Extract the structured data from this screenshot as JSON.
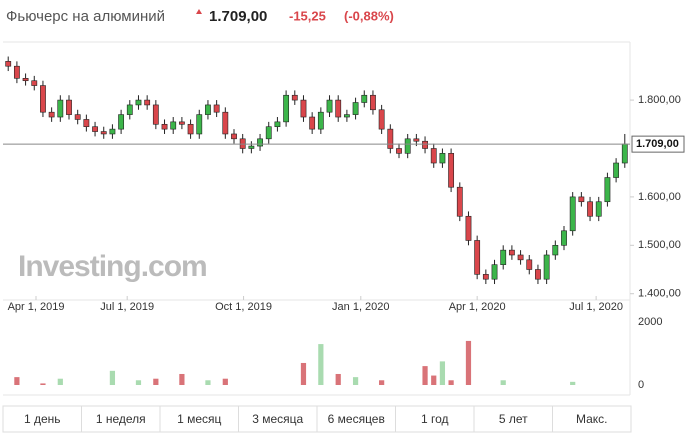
{
  "header": {
    "title": "Фьючерс на алюминий",
    "price": "1.709,00",
    "change": "-15,25",
    "change_pct": "(-0,88%)"
  },
  "chart_data": {
    "type": "candlestick",
    "watermark": "Investing.com",
    "open": [
      1880,
      1870,
      1845,
      1840,
      1830,
      1775,
      1765,
      1800,
      1770,
      1760,
      1745,
      1735,
      1730,
      1740,
      1770,
      1790,
      1800,
      1790,
      1750,
      1740,
      1755,
      1750,
      1730,
      1770,
      1790,
      1775,
      1730,
      1720,
      1700,
      1705,
      1720,
      1745,
      1755,
      1810,
      1800,
      1765,
      1740,
      1775,
      1800,
      1765,
      1770,
      1795,
      1810,
      1780,
      1740,
      1700,
      1690,
      1720,
      1715,
      1700,
      1670,
      1690,
      1620,
      1560,
      1510,
      1440,
      1430,
      1460,
      1490,
      1480,
      1470,
      1450,
      1430,
      1480,
      1500,
      1530,
      1600,
      1590,
      1560,
      1590,
      1640,
      1670
    ],
    "high": [
      1890,
      1880,
      1855,
      1850,
      1840,
      1785,
      1810,
      1810,
      1780,
      1770,
      1755,
      1745,
      1750,
      1780,
      1800,
      1810,
      1810,
      1800,
      1760,
      1765,
      1765,
      1760,
      1780,
      1800,
      1800,
      1785,
      1740,
      1730,
      1715,
      1730,
      1755,
      1765,
      1820,
      1820,
      1810,
      1775,
      1785,
      1810,
      1810,
      1780,
      1805,
      1820,
      1820,
      1790,
      1750,
      1710,
      1730,
      1730,
      1725,
      1710,
      1700,
      1700,
      1630,
      1570,
      1520,
      1450,
      1470,
      1500,
      1500,
      1490,
      1480,
      1460,
      1490,
      1510,
      1540,
      1610,
      1610,
      1600,
      1600,
      1650,
      1680,
      1730
    ],
    "low": [
      1860,
      1835,
      1830,
      1820,
      1765,
      1755,
      1755,
      1760,
      1750,
      1735,
      1725,
      1720,
      1720,
      1730,
      1760,
      1780,
      1780,
      1740,
      1730,
      1730,
      1740,
      1720,
      1720,
      1760,
      1765,
      1720,
      1710,
      1690,
      1690,
      1695,
      1710,
      1735,
      1745,
      1790,
      1755,
      1730,
      1730,
      1765,
      1755,
      1755,
      1760,
      1785,
      1770,
      1730,
      1690,
      1680,
      1680,
      1705,
      1690,
      1660,
      1660,
      1610,
      1550,
      1500,
      1430,
      1420,
      1420,
      1450,
      1470,
      1460,
      1440,
      1420,
      1420,
      1470,
      1490,
      1520,
      1580,
      1550,
      1550,
      1580,
      1630,
      1660
    ],
    "close": [
      1870,
      1845,
      1840,
      1830,
      1775,
      1765,
      1800,
      1770,
      1760,
      1745,
      1735,
      1730,
      1740,
      1770,
      1790,
      1800,
      1790,
      1750,
      1740,
      1755,
      1750,
      1730,
      1770,
      1790,
      1775,
      1730,
      1720,
      1700,
      1705,
      1720,
      1745,
      1755,
      1810,
      1800,
      1765,
      1740,
      1775,
      1800,
      1765,
      1770,
      1795,
      1810,
      1780,
      1740,
      1700,
      1690,
      1720,
      1715,
      1700,
      1670,
      1690,
      1620,
      1560,
      1510,
      1440,
      1430,
      1460,
      1490,
      1480,
      1470,
      1450,
      1430,
      1480,
      1500,
      1530,
      1600,
      1590,
      1560,
      1590,
      1640,
      1670,
      1709
    ],
    "volume": [
      0,
      250,
      0,
      0,
      50,
      0,
      200,
      0,
      0,
      0,
      0,
      0,
      450,
      0,
      0,
      150,
      0,
      200,
      0,
      0,
      350,
      0,
      0,
      150,
      0,
      200,
      0,
      0,
      0,
      0,
      0,
      0,
      0,
      0,
      700,
      0,
      1300,
      0,
      350,
      0,
      250,
      0,
      0,
      150,
      0,
      0,
      0,
      0,
      600,
      300,
      750,
      150,
      0,
      1400,
      0,
      0,
      0,
      150,
      0,
      0,
      0,
      0,
      0,
      0,
      0,
      100,
      0,
      0,
      0,
      0,
      0,
      0
    ],
    "up_color": "#3cb54a",
    "down_color": "#d9464b",
    "up_volume_color": "#a9dbb0",
    "down_volume_color": "#d97378",
    "xlim": [
      -0.6,
      71.6
    ],
    "xticks": [
      {
        "value": 3.2,
        "label": "Apr 1, 2019"
      },
      {
        "value": 13.7,
        "label": "Jul 1, 2019"
      },
      {
        "value": 27.1,
        "label": "Oct 1, 2019"
      },
      {
        "value": 40.6,
        "label": "Jan 1, 2020"
      },
      {
        "value": 54,
        "label": "Apr 1, 2020"
      },
      {
        "value": 67.7,
        "label": "Jul 1, 2020"
      }
    ],
    "ylim": [
      1387,
      1920
    ],
    "yticks": [
      {
        "value": 1800,
        "label": "1.800,00"
      },
      {
        "value": 1600,
        "label": "1.600,00"
      },
      {
        "value": 1500,
        "label": "1.500,00"
      },
      {
        "value": 1400,
        "label": "1.400,00"
      }
    ],
    "last_price": {
      "value": 1709,
      "label": "1.709,00"
    },
    "volume_ylim": [
      0,
      2700
    ],
    "volume_ticks": [
      2000,
      0
    ],
    "ranges": [
      "1 день",
      "1 неделя",
      "1 месяц",
      "3 месяца",
      "6 месяцев",
      "1 год",
      "5 лет",
      "Макс."
    ]
  }
}
